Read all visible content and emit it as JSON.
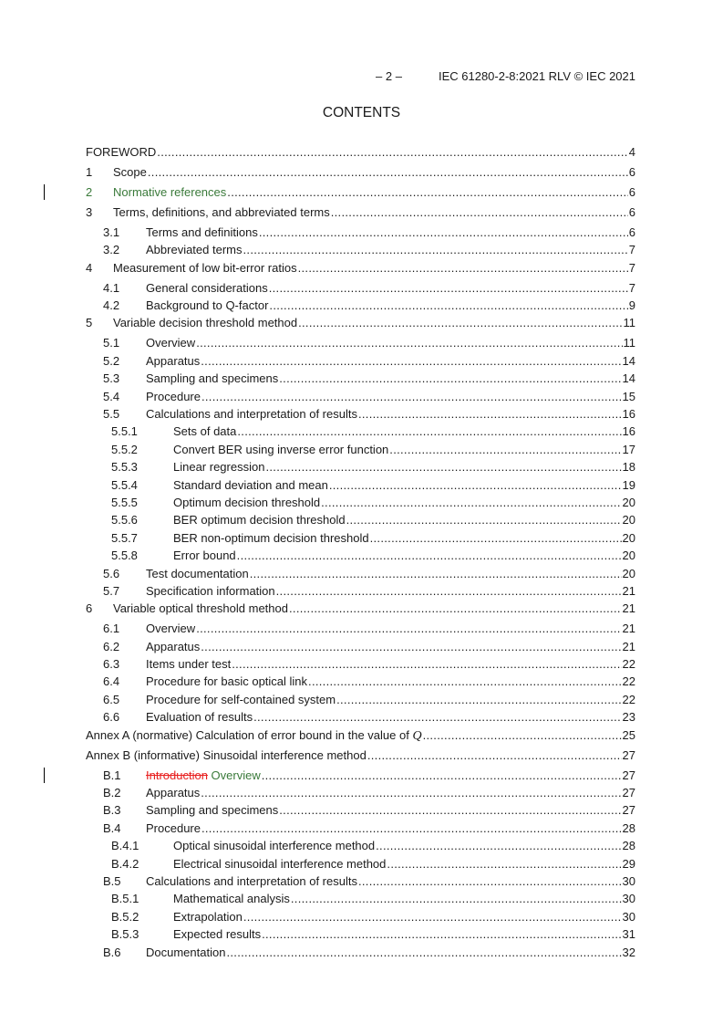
{
  "header": {
    "page": "– 2 –",
    "doc": "IEC 61280-2-8:2021 RLV © IEC 2021"
  },
  "title": "CONTENTS",
  "colors": {
    "inserted": "#3a7a3a",
    "deleted": "#e82020"
  },
  "toc": [
    {
      "level": 1,
      "num": "",
      "parts": [
        {
          "t": "FOREWORD"
        }
      ],
      "page": "4"
    },
    {
      "level": 1,
      "num": "1",
      "parts": [
        {
          "t": "Scope"
        }
      ],
      "page": "6"
    },
    {
      "level": 1,
      "num": "2",
      "parts": [
        {
          "t": "Normative references ",
          "s": "ins"
        }
      ],
      "page": "6",
      "changed": true,
      "style": "ins"
    },
    {
      "level": 1,
      "num": "3",
      "parts": [
        {
          "t": "Terms, definitions, and abbreviated terms "
        }
      ],
      "page": "6"
    },
    {
      "level": 2,
      "num": "3.1",
      "parts": [
        {
          "t": "Terms and definitions"
        }
      ],
      "page": "6"
    },
    {
      "level": 2,
      "num": "3.2",
      "parts": [
        {
          "t": "Abbreviated terms"
        }
      ],
      "page": "7"
    },
    {
      "level": 1,
      "num": "4",
      "parts": [
        {
          "t": "Measurement of low bit-error ratios "
        }
      ],
      "page": "7"
    },
    {
      "level": 2,
      "num": "4.1",
      "parts": [
        {
          "t": "General considerations "
        }
      ],
      "page": "7"
    },
    {
      "level": 2,
      "num": "4.2",
      "parts": [
        {
          "t": "Background to Q-factor "
        }
      ],
      "page": "9"
    },
    {
      "level": 1,
      "num": "5",
      "parts": [
        {
          "t": "Variable decision threshold method "
        }
      ],
      "page": "11"
    },
    {
      "level": 2,
      "num": "5.1",
      "parts": [
        {
          "t": "Overview"
        }
      ],
      "page": "11"
    },
    {
      "level": 2,
      "num": "5.2",
      "parts": [
        {
          "t": "Apparatus "
        }
      ],
      "page": "14"
    },
    {
      "level": 2,
      "num": "5.3",
      "parts": [
        {
          "t": "Sampling and specimens "
        }
      ],
      "page": "14"
    },
    {
      "level": 2,
      "num": "5.4",
      "parts": [
        {
          "t": "Procedure "
        }
      ],
      "page": "15"
    },
    {
      "level": 2,
      "num": "5.5",
      "parts": [
        {
          "t": "Calculations and interpretation of results "
        }
      ],
      "page": "16"
    },
    {
      "level": 3,
      "num": "5.5.1",
      "parts": [
        {
          "t": "Sets of data "
        }
      ],
      "page": "16"
    },
    {
      "level": 3,
      "num": "5.5.2",
      "parts": [
        {
          "t": "Convert BER using inverse error function "
        }
      ],
      "page": "17"
    },
    {
      "level": 3,
      "num": "5.5.3",
      "parts": [
        {
          "t": "Linear regression"
        }
      ],
      "page": "18"
    },
    {
      "level": 3,
      "num": "5.5.4",
      "parts": [
        {
          "t": "Standard deviation and mean "
        }
      ],
      "page": "19"
    },
    {
      "level": 3,
      "num": "5.5.5",
      "parts": [
        {
          "t": "Optimum decision threshold"
        }
      ],
      "page": "20"
    },
    {
      "level": 3,
      "num": "5.5.6",
      "parts": [
        {
          "t": "BER optimum decision threshold "
        }
      ],
      "page": "20"
    },
    {
      "level": 3,
      "num": "5.5.7",
      "parts": [
        {
          "t": "BER non-optimum decision threshold "
        }
      ],
      "page": "20"
    },
    {
      "level": 3,
      "num": "5.5.8",
      "parts": [
        {
          "t": "Error bound "
        }
      ],
      "page": "20"
    },
    {
      "level": 2,
      "num": "5.6",
      "parts": [
        {
          "t": "Test documentation "
        }
      ],
      "page": "20"
    },
    {
      "level": 2,
      "num": "5.7",
      "parts": [
        {
          "t": "Specification information"
        }
      ],
      "page": "21"
    },
    {
      "level": 1,
      "num": "6",
      "parts": [
        {
          "t": "Variable optical threshold method"
        }
      ],
      "page": "21"
    },
    {
      "level": 2,
      "num": "6.1",
      "parts": [
        {
          "t": "Overview"
        }
      ],
      "page": "21"
    },
    {
      "level": 2,
      "num": "6.2",
      "parts": [
        {
          "t": "Apparatus"
        }
      ],
      "page": "21"
    },
    {
      "level": 2,
      "num": "6.3",
      "parts": [
        {
          "t": "Items under test"
        }
      ],
      "page": "22"
    },
    {
      "level": 2,
      "num": "6.4",
      "parts": [
        {
          "t": "Procedure for basic optical link "
        }
      ],
      "page": "22"
    },
    {
      "level": 2,
      "num": "6.5",
      "parts": [
        {
          "t": "Procedure for self-contained system "
        }
      ],
      "page": "22"
    },
    {
      "level": 2,
      "num": "6.6",
      "parts": [
        {
          "t": "Evaluation of results "
        }
      ],
      "page": "23"
    },
    {
      "level": 1,
      "num": "",
      "parts": [
        {
          "t": "Annex A (normative)  Calculation of error bound in the value of "
        },
        {
          "t": "Q",
          "s": "q"
        }
      ],
      "page": "25"
    },
    {
      "level": 1,
      "num": "",
      "parts": [
        {
          "t": "Annex B (informative)  Sinusoidal interference method "
        }
      ],
      "page": "27"
    },
    {
      "level": 2,
      "num": "B.1",
      "parts": [
        {
          "t": "Introduction",
          "s": "del"
        },
        {
          "t": " Overview ",
          "s": "ins"
        }
      ],
      "page": "27",
      "changed": true
    },
    {
      "level": 2,
      "num": "B.2",
      "parts": [
        {
          "t": "Apparatus "
        }
      ],
      "page": "27"
    },
    {
      "level": 2,
      "num": "B.3",
      "parts": [
        {
          "t": "Sampling and specimens "
        }
      ],
      "page": "27"
    },
    {
      "level": 2,
      "num": "B.4",
      "parts": [
        {
          "t": "Procedure "
        }
      ],
      "page": "28"
    },
    {
      "level": 3,
      "num": "B.4.1",
      "parts": [
        {
          "t": "Optical sinusoidal interference method "
        }
      ],
      "page": "28"
    },
    {
      "level": 3,
      "num": "B.4.2",
      "parts": [
        {
          "t": "Electrical sinusoidal interference method"
        }
      ],
      "page": "29"
    },
    {
      "level": 2,
      "num": "B.5",
      "parts": [
        {
          "t": "Calculations and interpretation of results "
        }
      ],
      "page": "30"
    },
    {
      "level": 3,
      "num": "B.5.1",
      "parts": [
        {
          "t": "Mathematical analysis "
        }
      ],
      "page": "30"
    },
    {
      "level": 3,
      "num": "B.5.2",
      "parts": [
        {
          "t": "Extrapolation "
        }
      ],
      "page": "30"
    },
    {
      "level": 3,
      "num": "B.5.3",
      "parts": [
        {
          "t": "Expected results"
        }
      ],
      "page": "31"
    },
    {
      "level": 2,
      "num": "B.6",
      "parts": [
        {
          "t": "Documentation"
        }
      ],
      "page": "32"
    }
  ]
}
